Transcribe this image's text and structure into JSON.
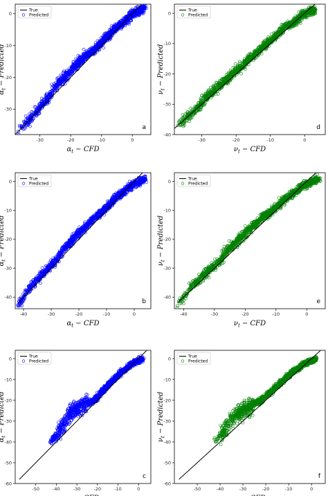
{
  "chart_data": [
    {
      "panel_label": "a",
      "type": "scatter",
      "color": "#0000ff",
      "xlabel": "α_t − CFD",
      "ylabel": "α_t − Predicted",
      "xlim": [
        -38,
        6
      ],
      "ylim": [
        -38,
        3
      ],
      "xticks": [
        -30,
        -20,
        -10,
        0
      ],
      "yticks": [
        -30,
        -20,
        -10,
        0
      ],
      "legend": {
        "position": "top-left",
        "entries": [
          "True",
          "Predicted"
        ]
      },
      "series": [
        {
          "name": "True",
          "type": "line",
          "x": [
            -38,
            5
          ],
          "y": [
            -38,
            5
          ]
        },
        {
          "name": "Predicted",
          "type": "scatter",
          "x": [
            -37,
            -35,
            -33,
            -31,
            -29,
            -27,
            -25,
            -23,
            -21,
            -19,
            -17,
            -15,
            -13,
            -11,
            -9,
            -7,
            -5,
            -3,
            -1,
            0,
            1,
            2,
            3,
            4
          ],
          "y": [
            -37,
            -35,
            -33,
            -31,
            -28,
            -26,
            -23,
            -21,
            -19,
            -17,
            -15,
            -13,
            -12,
            -10,
            -8,
            -6,
            -4,
            -3,
            -1,
            0,
            0,
            1,
            1,
            2
          ]
        }
      ]
    },
    {
      "panel_label": "d",
      "type": "scatter",
      "color": "#008000",
      "xlabel": "ν_t − CFD",
      "ylabel": "ν_t − Predicted",
      "xlim": [
        -38,
        6
      ],
      "ylim": [
        -40,
        3
      ],
      "xticks": [
        -30,
        -20,
        -10,
        0
      ],
      "yticks": [
        -40,
        -30,
        -20,
        -10,
        0
      ],
      "legend": {
        "position": "top-left",
        "entries": [
          "True",
          "Predicted"
        ]
      },
      "series": [
        {
          "name": "True",
          "type": "line",
          "x": [
            -38,
            5
          ],
          "y": [
            -38,
            5
          ]
        },
        {
          "name": "Predicted",
          "type": "scatter",
          "x": [
            -37,
            -35,
            -33,
            -31,
            -29,
            -27,
            -25,
            -23,
            -21,
            -19,
            -17,
            -15,
            -13,
            -11,
            -9,
            -7,
            -5,
            -3,
            -1,
            0,
            1,
            2,
            3
          ],
          "y": [
            -37,
            -35,
            -33,
            -31,
            -28,
            -26,
            -24,
            -22,
            -20,
            -18,
            -16,
            -14,
            -12,
            -10,
            -8,
            -6,
            -4,
            -3,
            -1,
            0,
            0,
            1,
            1
          ]
        }
      ]
    },
    {
      "panel_label": "b",
      "type": "scatter",
      "color": "#0000ff",
      "xlabel": "α_t − CFD",
      "ylabel": "α_t − Predicted",
      "xlim": [
        -43,
        6
      ],
      "ylim": [
        -44,
        3
      ],
      "xticks": [
        -40,
        -30,
        -20,
        -10,
        0
      ],
      "yticks": [
        -40,
        -30,
        -20,
        -10,
        0
      ],
      "legend": {
        "position": "top-left",
        "entries": [
          "True",
          "Predicted"
        ]
      },
      "series": [
        {
          "name": "True",
          "type": "line",
          "x": [
            -42,
            5
          ],
          "y": [
            -42,
            5
          ]
        },
        {
          "name": "Predicted",
          "type": "scatter",
          "x": [
            -42,
            -40,
            -38,
            -36,
            -34,
            -32,
            -30,
            -28,
            -26,
            -24,
            -22,
            -20,
            -18,
            -16,
            -14,
            -12,
            -10,
            -8,
            -6,
            -4,
            -2,
            0,
            2,
            4
          ],
          "y": [
            -43,
            -40,
            -37,
            -35,
            -33,
            -31,
            -29,
            -27,
            -24,
            -22,
            -20,
            -18,
            -16,
            -14,
            -12,
            -11,
            -9,
            -7,
            -5,
            -4,
            -2,
            -1,
            0,
            1
          ]
        }
      ]
    },
    {
      "panel_label": "e",
      "type": "scatter",
      "color": "#008000",
      "xlabel": "ν_t − CFD",
      "ylabel": "ν_t − Predicted",
      "xlim": [
        -43,
        6
      ],
      "ylim": [
        -44,
        3
      ],
      "xticks": [
        -40,
        -30,
        -20,
        -10,
        0
      ],
      "yticks": [
        -40,
        -30,
        -20,
        -10,
        0
      ],
      "legend": {
        "position": "top-left",
        "entries": [
          "True",
          "Predicted"
        ]
      },
      "series": [
        {
          "name": "True",
          "type": "line",
          "x": [
            -42,
            5
          ],
          "y": [
            -42,
            5
          ]
        },
        {
          "name": "Predicted",
          "type": "scatter",
          "x": [
            -42,
            -40,
            -38,
            -36,
            -34,
            -32,
            -30,
            -28,
            -26,
            -24,
            -22,
            -20,
            -18,
            -16,
            -14,
            -12,
            -10,
            -8,
            -6,
            -4,
            -2,
            0,
            2,
            4
          ],
          "y": [
            -43,
            -40,
            -37,
            -35,
            -33,
            -31,
            -29,
            -27,
            -24,
            -22,
            -20,
            -18,
            -16,
            -14,
            -12,
            -11,
            -9,
            -7,
            -5,
            -4,
            -2,
            -1,
            0,
            1
          ]
        }
      ]
    },
    {
      "panel_label": "c",
      "type": "scatter",
      "color": "#0000ff",
      "xlabel": "α_t − CFD",
      "ylabel": "α_t − Predicted",
      "xlim": [
        -60,
        6
      ],
      "ylim": [
        -60,
        4
      ],
      "xticks": [
        -50,
        -40,
        -30,
        -20,
        -10,
        0
      ],
      "yticks": [
        -60,
        -50,
        -40,
        -30,
        -20,
        -10,
        0
      ],
      "legend": {
        "position": "top-left",
        "entries": [
          "True",
          "Predicted"
        ]
      },
      "series": [
        {
          "name": "True",
          "type": "line",
          "x": [
            -58,
            4
          ],
          "y": [
            -58,
            4
          ]
        },
        {
          "name": "Predicted",
          "type": "scatter",
          "x": [
            -43,
            -40,
            -38,
            -36,
            -34,
            -32,
            -30,
            -28,
            -26,
            -24,
            -22,
            -20,
            -18,
            -16,
            -14,
            -12,
            -10,
            -8,
            -6,
            -4,
            -2,
            0,
            2
          ],
          "y": [
            -40,
            -37,
            -34,
            -31,
            -27,
            -25,
            -24,
            -23,
            -22,
            -21,
            -20,
            -19,
            -16,
            -14,
            -12,
            -10,
            -8,
            -6,
            -5,
            -3,
            -2,
            -1,
            0
          ]
        }
      ]
    },
    {
      "panel_label": "f",
      "type": "scatter",
      "color": "#008000",
      "xlabel": "ν_t − CFD",
      "ylabel": "ν_t − Predicted",
      "xlim": [
        -60,
        6
      ],
      "ylim": [
        -60,
        4
      ],
      "xticks": [
        -50,
        -40,
        -30,
        -20,
        -10,
        0
      ],
      "yticks": [
        -60,
        -50,
        -40,
        -30,
        -20,
        -10,
        0
      ],
      "legend": {
        "position": "top-left",
        "entries": [
          "True",
          "Predicted"
        ]
      },
      "series": [
        {
          "name": "True",
          "type": "line",
          "x": [
            -58,
            4
          ],
          "y": [
            -58,
            4
          ]
        },
        {
          "name": "Predicted",
          "type": "scatter",
          "x": [
            -42,
            -40,
            -38,
            -36,
            -34,
            -32,
            -30,
            -28,
            -26,
            -24,
            -22,
            -20,
            -18,
            -16,
            -14,
            -12,
            -10,
            -8,
            -6,
            -4,
            -2,
            0,
            2
          ],
          "y": [
            -40,
            -37,
            -34,
            -31,
            -28,
            -26,
            -25,
            -24,
            -23,
            -21,
            -20,
            -18,
            -16,
            -14,
            -12,
            -10,
            -8,
            -6,
            -5,
            -3,
            -2,
            -1,
            0
          ]
        }
      ]
    }
  ]
}
